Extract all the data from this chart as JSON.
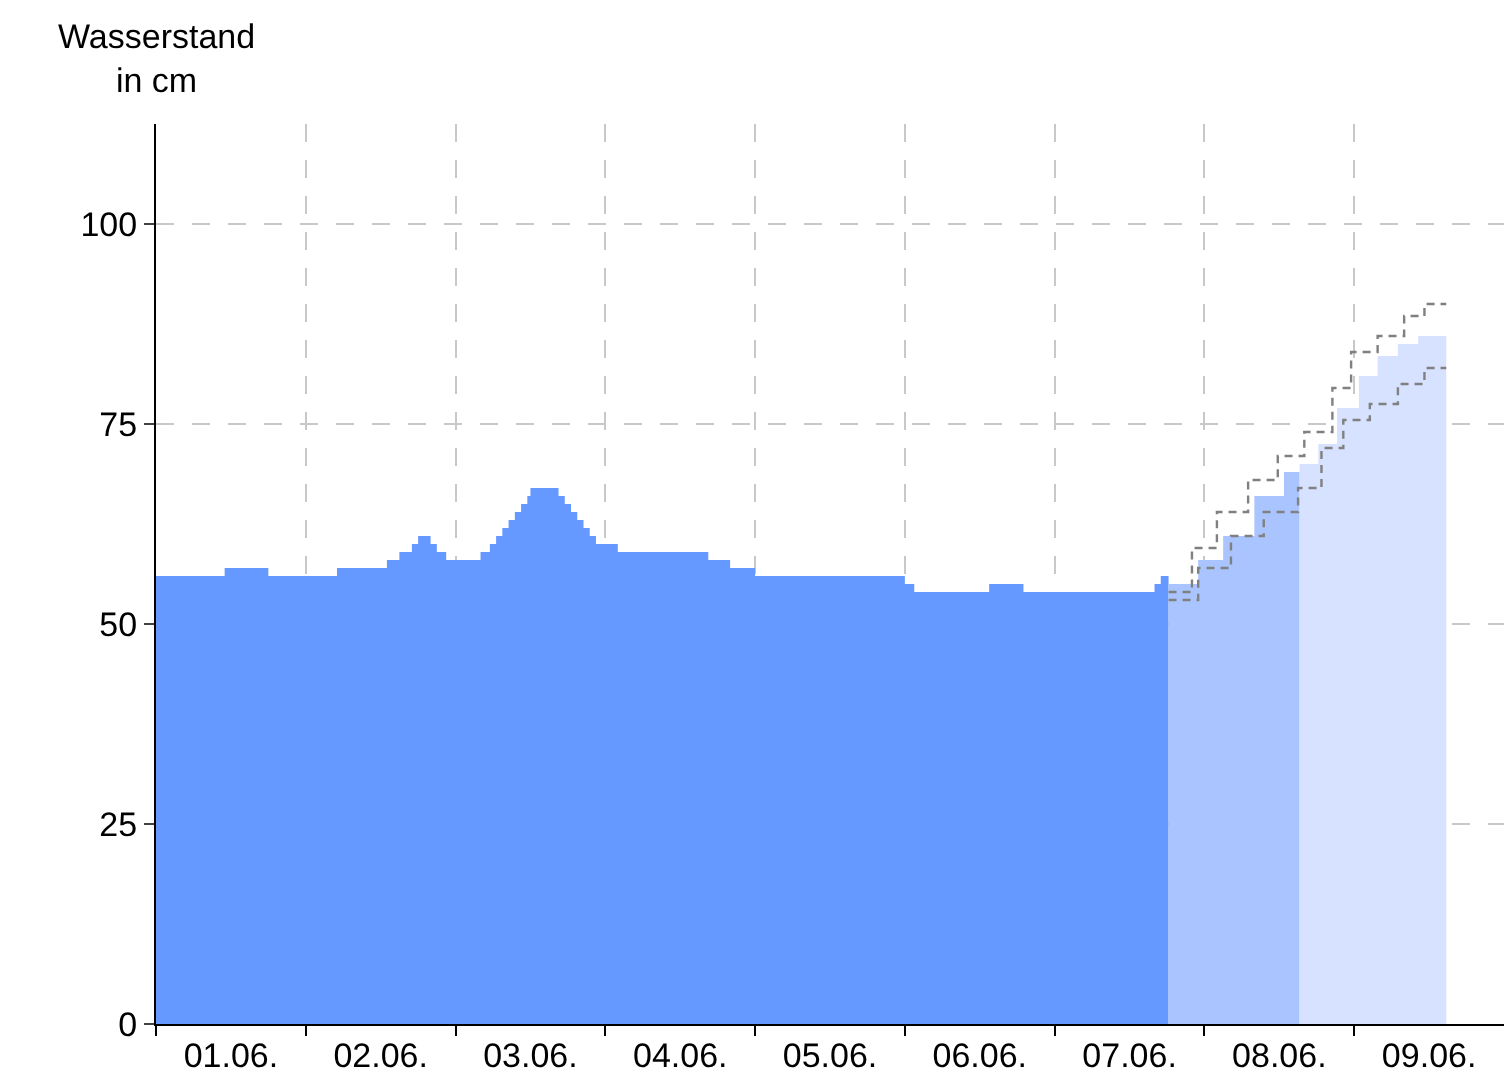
{
  "chart_data": {
    "type": "area",
    "ylabel": "Wasserstand\nin cm",
    "xlim": [
      "--06-01",
      "--06-10"
    ],
    "xticks": [
      {
        "value": "--06-01",
        "label": null
      },
      {
        "value": "--06-01T12:00",
        "label": "01.06."
      },
      {
        "value": "--06-02",
        "label": null
      },
      {
        "value": "--06-02T12:00",
        "label": "02.06."
      },
      {
        "value": "--06-03",
        "label": null
      },
      {
        "value": "--06-03T12:00",
        "label": "03.06."
      },
      {
        "value": "--06-04",
        "label": null
      },
      {
        "value": "--06-04T12:00",
        "label": "04.06."
      },
      {
        "value": "--06-05",
        "label": null
      },
      {
        "value": "--06-05T12:00",
        "label": "05.06."
      },
      {
        "value": "--06-06",
        "label": null
      },
      {
        "value": "--06-06T12:00",
        "label": "06.06."
      },
      {
        "value": "--06-07",
        "label": null
      },
      {
        "value": "--06-07T12:00",
        "label": "07.06."
      },
      {
        "value": "--06-08",
        "label": null
      },
      {
        "value": "--06-08T12:00",
        "label": "08.06."
      },
      {
        "value": "--06-09",
        "label": null
      },
      {
        "value": "--06-09T12:00",
        "label": "09.06."
      }
    ],
    "ylim": [
      0,
      112.5
    ],
    "yticks": [
      0,
      25,
      50,
      75,
      100
    ],
    "grid": true,
    "series": [
      {
        "color": "#6699ff",
        "x": [
          "--06-01T00:00",
          "--06-01T11:00",
          "--06-01T18:00",
          "--06-02T05:00",
          "--06-02T13:00",
          "--06-02T15:00",
          "--06-02T17:00",
          "--06-02T18:00",
          "--06-02T20:00",
          "--06-02T21:00",
          "--06-02T22:30",
          "--06-03T04:00",
          "--06-03T05:30",
          "--06-03T06:30",
          "--06-03T07:30",
          "--06-03T08:30",
          "--06-03T09:30",
          "--06-03T10:30",
          "--06-03T11:30",
          "--06-03T12:00",
          "--06-03T16:30",
          "--06-03T17:30",
          "--06-03T18:30",
          "--06-03T19:30",
          "--06-03T20:30",
          "--06-03T21:30",
          "--06-03T22:30",
          "--06-04T02:00",
          "--06-04T16:30",
          "--06-04T20:00",
          "--06-05T00:00",
          "--06-06T00:00",
          "--06-06T01:30",
          "--06-06T13:30",
          "--06-06T19:00",
          "--06-07T16:00",
          "--06-07T17:00",
          "--06-07T18:15"
        ],
        "values": [
          56,
          57,
          56,
          57,
          58,
          59,
          60,
          61,
          60,
          59,
          58,
          59,
          60,
          61,
          62,
          63,
          64,
          65,
          66,
          67,
          66,
          65,
          64,
          63,
          62,
          61,
          60,
          59,
          58,
          57,
          56,
          55,
          54,
          55,
          54,
          55,
          56,
          56
        ]
      },
      {
        "color": "#aac4ff",
        "x": [
          "--06-07T18:15",
          "--06-07T23:00",
          "--06-08T03:00",
          "--06-08T08:00",
          "--06-08T12:45",
          "--06-08T15:15"
        ],
        "values": [
          55,
          58,
          61,
          66,
          69,
          70
        ]
      },
      {
        "color": "#d6e2ff",
        "x": [
          "--06-08T15:15",
          "--06-08T18:15",
          "--06-08T21:15",
          "--06-09T00:45",
          "--06-09T03:45",
          "--06-09T07:00",
          "--06-09T10:15",
          "--06-09T14:45"
        ],
        "values": [
          70,
          72.5,
          77,
          81,
          83.5,
          85,
          86,
          86
        ]
      },
      {
        "type": "step",
        "color": "#808080",
        "line_style": "dashed",
        "x": [
          "--06-07T18:15",
          "--06-07T22:00",
          "--06-08T02:00",
          "--06-08T07:00",
          "--06-08T11:45",
          "--06-08T16:00",
          "--06-08T20:30",
          "--06-08T23:30",
          "--06-09T03:45",
          "--06-09T08:00",
          "--06-09T11:15",
          "--06-09T14:45"
        ],
        "values": [
          54,
          59.5,
          64,
          68,
          71,
          74,
          79.5,
          84,
          86,
          88.5,
          90,
          90
        ]
      },
      {
        "type": "step",
        "color": "#808080",
        "line_style": "dashed",
        "x": [
          "--06-07T18:15",
          "--06-07T23:00",
          "--06-08T04:15",
          "--06-08T09:30",
          "--06-08T15:00",
          "--06-08T18:45",
          "--06-08T22:15",
          "--06-09T02:30",
          "--06-09T07:00",
          "--06-09T11:15",
          "--06-09T14:45"
        ],
        "values": [
          53,
          57,
          61,
          64,
          67,
          72,
          75.5,
          77.5,
          80,
          82,
          82
        ]
      }
    ]
  }
}
